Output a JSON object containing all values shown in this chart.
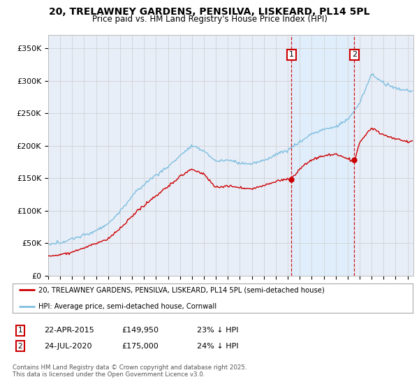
{
  "title": "20, TRELAWNEY GARDENS, PENSILVA, LISKEARD, PL14 5PL",
  "subtitle": "Price paid vs. HM Land Registry's House Price Index (HPI)",
  "xlim_start": 1995.0,
  "xlim_end": 2025.5,
  "ylim": [
    0,
    370000
  ],
  "yticks": [
    0,
    50000,
    100000,
    150000,
    200000,
    250000,
    300000,
    350000
  ],
  "ytick_labels": [
    "£0",
    "£50K",
    "£100K",
    "£150K",
    "£200K",
    "£250K",
    "£300K",
    "£350K"
  ],
  "marker1_date": 2015.31,
  "marker2_date": 2020.56,
  "marker1_price": 149950,
  "marker2_price": 175000,
  "legend_line1": "20, TRELAWNEY GARDENS, PENSILVA, LISKEARD, PL14 5PL (semi-detached house)",
  "legend_line2": "HPI: Average price, semi-detached house, Cornwall",
  "footnote": "Contains HM Land Registry data © Crown copyright and database right 2025.\nThis data is licensed under the Open Government Licence v3.0.",
  "hpi_color": "#7fbfdf",
  "price_color": "#cc0000",
  "background_color": "#e8eef8",
  "shade_color": "#ddeeff",
  "plot_bg_color": "#ffffff"
}
